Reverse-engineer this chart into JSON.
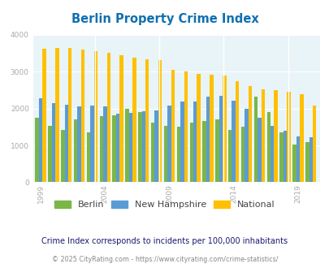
{
  "title": "Berlin Property Crime Index",
  "subtitle": "Crime Index corresponds to incidents per 100,000 inhabitants",
  "footer": "© 2025 CityRating.com - https://www.cityrating.com/crime-statistics/",
  "years": [
    1999,
    2000,
    2001,
    2002,
    2003,
    2004,
    2005,
    2006,
    2007,
    2008,
    2009,
    2010,
    2011,
    2012,
    2013,
    2014,
    2015,
    2016,
    2017,
    2018,
    2019,
    2020
  ],
  "berlin": [
    1750,
    1520,
    1420,
    1700,
    1360,
    1800,
    1820,
    2000,
    1900,
    1610,
    1530,
    1510,
    1620,
    1660,
    1710,
    1420,
    1500,
    2330,
    1900,
    1350,
    1020,
    1090
  ],
  "new_hampshire": [
    2280,
    2150,
    2100,
    2060,
    2080,
    2060,
    1860,
    1880,
    1920,
    1940,
    2090,
    2180,
    2200,
    2320,
    2350,
    2210,
    1990,
    1760,
    1540,
    1400,
    1250,
    1220
  ],
  "national": [
    3620,
    3650,
    3650,
    3600,
    3560,
    3510,
    3450,
    3380,
    3330,
    3310,
    3060,
    3000,
    2950,
    2920,
    2890,
    2740,
    2610,
    2520,
    2500,
    2460,
    2390,
    2090
  ],
  "berlin_color": "#7ab648",
  "nh_color": "#5b9bd5",
  "national_color": "#ffc000",
  "bg_color": "#e8f4f8",
  "title_color": "#1070b0",
  "ylim": [
    0,
    4000
  ],
  "yticks": [
    0,
    1000,
    2000,
    3000,
    4000
  ],
  "xtick_years": [
    1999,
    2004,
    2009,
    2014,
    2019
  ],
  "vline_years": [
    2004,
    2009,
    2014,
    2019
  ],
  "bar_width": 0.28,
  "legend_labels": [
    "Berlin",
    "New Hampshire",
    "National"
  ],
  "subtitle_color": "#1a1a6e",
  "footer_color": "#888888"
}
